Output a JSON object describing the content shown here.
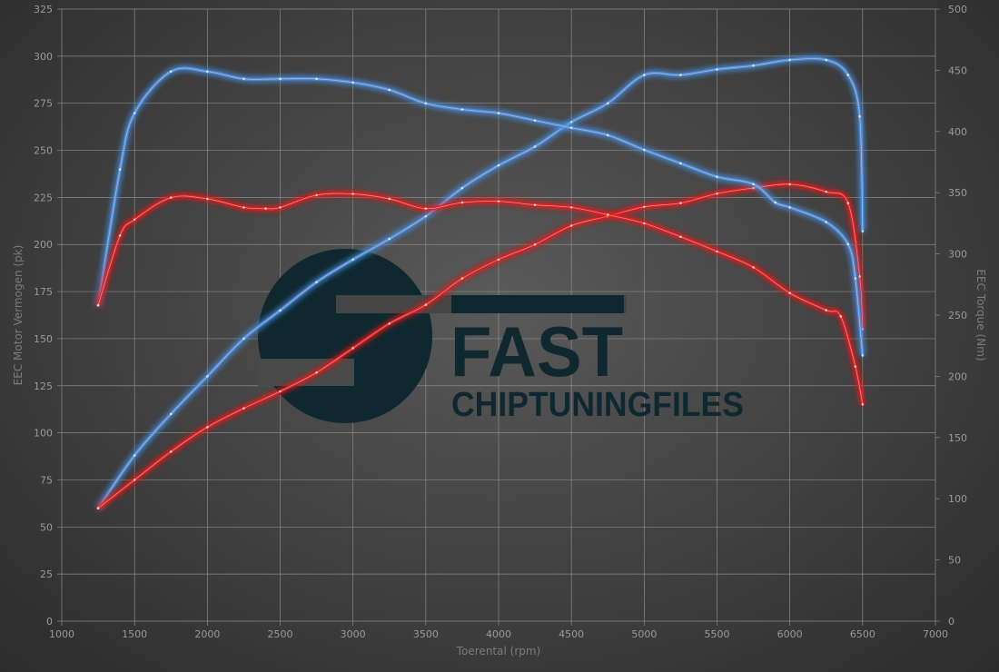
{
  "chart_data": {
    "type": "line",
    "title": "",
    "xlabel": "Toerental (rpm)",
    "ylabel": "EEC Motor Vermogen (pk)",
    "ylabel_right": "EEC Torque (Nm)",
    "xlim": [
      1000,
      7000
    ],
    "ylim": [
      0,
      325
    ],
    "ylim_right": [
      0,
      500
    ],
    "xticks": [
      1000,
      1500,
      2000,
      2500,
      3000,
      3500,
      4000,
      4500,
      5000,
      5500,
      6000,
      6500,
      7000
    ],
    "yticks": [
      0,
      25,
      50,
      75,
      100,
      125,
      150,
      175,
      200,
      225,
      250,
      275,
      300,
      325
    ],
    "yticks_right": [
      0,
      50,
      100,
      150,
      200,
      250,
      300,
      350,
      400,
      450,
      500
    ],
    "grid": true,
    "legend": "none",
    "series": [
      {
        "axis": "left",
        "color": "#4a90e2",
        "x": [
          1250,
          1500,
          1750,
          2000,
          2250,
          2500,
          2750,
          3000,
          3250,
          3500,
          3750,
          4000,
          4250,
          4500,
          4750,
          5000,
          5250,
          5500,
          5750,
          6000,
          6250,
          6400,
          6480,
          6500
        ],
        "y": [
          60,
          88,
          110,
          130,
          150,
          165,
          180,
          192,
          203,
          215,
          230,
          242,
          252,
          265,
          275,
          290,
          290,
          293,
          295,
          298,
          298,
          290,
          268,
          207
        ]
      },
      {
        "axis": "left",
        "color": "#e02020",
        "x": [
          1250,
          1500,
          1750,
          2000,
          2250,
          2500,
          2750,
          3000,
          3250,
          3500,
          3750,
          4000,
          4250,
          4500,
          4750,
          5000,
          5250,
          5500,
          5750,
          6000,
          6250,
          6400,
          6480,
          6500
        ],
        "y": [
          60,
          75,
          90,
          103,
          113,
          122,
          132,
          145,
          158,
          168,
          182,
          192,
          200,
          210,
          215,
          220,
          222,
          227,
          230,
          232,
          228,
          222,
          183,
          155
        ]
      },
      {
        "axis": "right",
        "color": "#4a90e2",
        "x": [
          1250,
          1400,
          1500,
          1750,
          2000,
          2250,
          2500,
          2750,
          3000,
          3250,
          3500,
          3750,
          4000,
          4250,
          4500,
          4750,
          5000,
          5250,
          5500,
          5750,
          5900,
          6000,
          6250,
          6400,
          6450,
          6500
        ],
        "y": [
          258,
          369,
          415,
          449,
          449,
          443,
          443,
          443,
          440,
          434,
          423,
          418,
          415,
          409,
          403,
          397,
          385,
          374,
          363,
          357,
          342,
          338,
          326,
          308,
          280,
          217
        ]
      },
      {
        "axis": "right",
        "color": "#e02020",
        "x": [
          1250,
          1400,
          1500,
          1750,
          2000,
          2250,
          2400,
          2500,
          2750,
          3000,
          3250,
          3500,
          3750,
          4000,
          4250,
          4500,
          4750,
          5000,
          5250,
          5500,
          5750,
          6000,
          6250,
          6350,
          6450,
          6500
        ],
        "y": [
          258,
          315,
          328,
          346,
          345,
          338,
          337,
          338,
          348,
          349,
          345,
          337,
          342,
          343,
          340,
          338,
          332,
          325,
          314,
          302,
          289,
          268,
          254,
          249,
          208,
          177
        ]
      }
    ]
  },
  "watermark": {
    "line1": "FAST",
    "line2": "CHIPTUNINGFILES",
    "color": "#0f2830"
  }
}
